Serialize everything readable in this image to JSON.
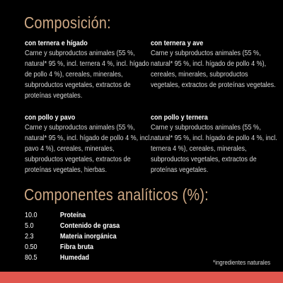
{
  "colors": {
    "accent": "#cfa985",
    "bar": "#e0564e",
    "background": "#000000"
  },
  "composition": {
    "title": "Composición:",
    "blocks": [
      {
        "title": "con ternera e hígado",
        "text": "Carne y subproductos animales (55 %, natural* 95 %, incl. ternera 4 %, incl. hígado de pollo 4 %), cereales, minerales, subproductos vegetales, extractos de proteínas vegetales."
      },
      {
        "title": "con ternera y ave",
        "text": "Carne y subproductos animales (55 %, natural* 95 %, incl. hígado de pollo 4 %), cereales, minerales, subproductos vegetales, extractos de proteínas vegetales."
      },
      {
        "title": "con pollo y pavo",
        "text": "Carne y subproductos animales (55 %, natural* 95 %, incl. hígado de pollo 4 %, incl. pavo 4 %), cereales, minerales, subproductos vegetales, extractos de proteínas vegetales, hierbas."
      },
      {
        "title": "con pollo y ternera",
        "text": "Carne y subproductos animales (55 %, natural* 95 %, incl. hígado de pollo 4 %, incl. ternera 4 %), cereales, minerales, subproductos vegetales, extractos de proteínas vegetales."
      }
    ]
  },
  "analytics": {
    "title": "Componentes analíticos  (%):",
    "rows": [
      {
        "value": "10.0",
        "label": "Proteína"
      },
      {
        "value": "5.0",
        "label": "Contenido de grasa"
      },
      {
        "value": "2.3",
        "label": "Materia inorgánica"
      },
      {
        "value": "0.50",
        "label": "Fibra bruta"
      },
      {
        "value": "80.5",
        "label": "Humedad"
      }
    ]
  },
  "footnote": "*ingredientes naturales"
}
